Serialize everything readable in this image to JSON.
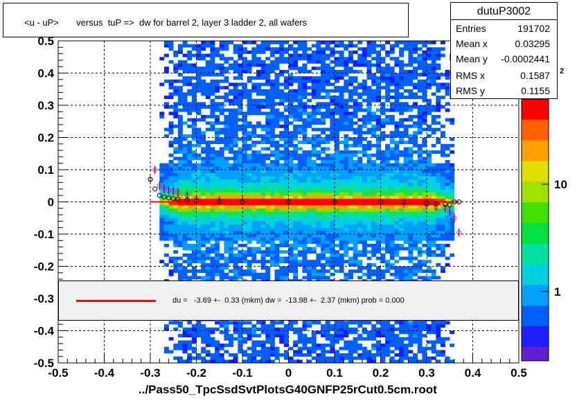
{
  "title": "<u - uP>       versus  tuP =>  dw for barrel 2, layer 3 ladder 2, all wafers",
  "stats": {
    "name": "dutuP3002",
    "rows": [
      {
        "label": "Entries",
        "value": "191702"
      },
      {
        "label": "Mean x",
        "value": "0.03295"
      },
      {
        "label": "Mean y",
        "value": "-0.0002441"
      },
      {
        "label": "RMS x",
        "value": "0.1587"
      },
      {
        "label": "RMS y",
        "value": "0.1155"
      }
    ]
  },
  "legend": {
    "text": "du =   -3.69 +-  0.33 (mkm) dw =  -13.98 +-  2.37 (mkm) prob = 0.000",
    "line_color": "#ff0000"
  },
  "colorbar": {
    "labels": [
      "1",
      "10"
    ],
    "top_label_sup": "2"
  },
  "chart_data": {
    "type": "heatmap",
    "xlabel": "../Pass50_TpcSsdSvtPlotsG40GNFP25rCut0.5cm.root",
    "ylabel": "",
    "xlim": [
      -0.5,
      0.5
    ],
    "ylim": [
      -0.5,
      0.5
    ],
    "x_ticks": [
      "-0.5",
      "-0.4",
      "-0.3",
      "-0.2",
      "-0.1",
      "0",
      "0.1",
      "0.2",
      "0.3",
      "0.4",
      "0.5"
    ],
    "y_ticks": [
      "-0.5",
      "-0.4",
      "-0.3",
      "-0.2",
      "-0.1",
      "0",
      "0.1",
      "0.2",
      "0.3",
      "0.4",
      "0.5"
    ],
    "grid": true,
    "fit_line": {
      "x": [
        -0.3,
        0.37
      ],
      "y": [
        0.0,
        0.0
      ],
      "color": "#ff0000"
    },
    "profile_mean": {
      "x": [
        -0.3,
        -0.29,
        -0.28,
        -0.27,
        -0.26,
        -0.25,
        -0.24,
        -0.22,
        -0.2,
        -0.15,
        -0.1,
        0.0,
        0.1,
        0.2,
        0.25,
        0.3,
        0.32,
        0.34,
        0.35,
        0.36,
        0.37
      ],
      "y": [
        0.07,
        0.04,
        0.02,
        0.015,
        0.012,
        0.01,
        0.008,
        0.006,
        0.004,
        0.002,
        0.001,
        0.0,
        0.0,
        0.0,
        -0.002,
        -0.005,
        -0.006,
        -0.007,
        -0.01,
        0.0,
        0.0
      ]
    },
    "profile_alt": {
      "x": [
        -0.3,
        -0.29,
        -0.28,
        -0.27,
        -0.26,
        -0.25,
        -0.24,
        -0.22,
        -0.2,
        -0.15,
        -0.1,
        0.0,
        0.1,
        0.2,
        0.25,
        0.3,
        0.32,
        0.34,
        0.35,
        0.36,
        0.37
      ],
      "y": [
        0.07,
        0.1,
        0.05,
        0.04,
        0.035,
        0.035,
        0.03,
        0.02,
        0.01,
        0.005,
        0.003,
        0.0,
        0.0,
        -0.002,
        -0.004,
        -0.01,
        -0.015,
        -0.02,
        -0.03,
        -0.05,
        -0.095
      ]
    }
  }
}
